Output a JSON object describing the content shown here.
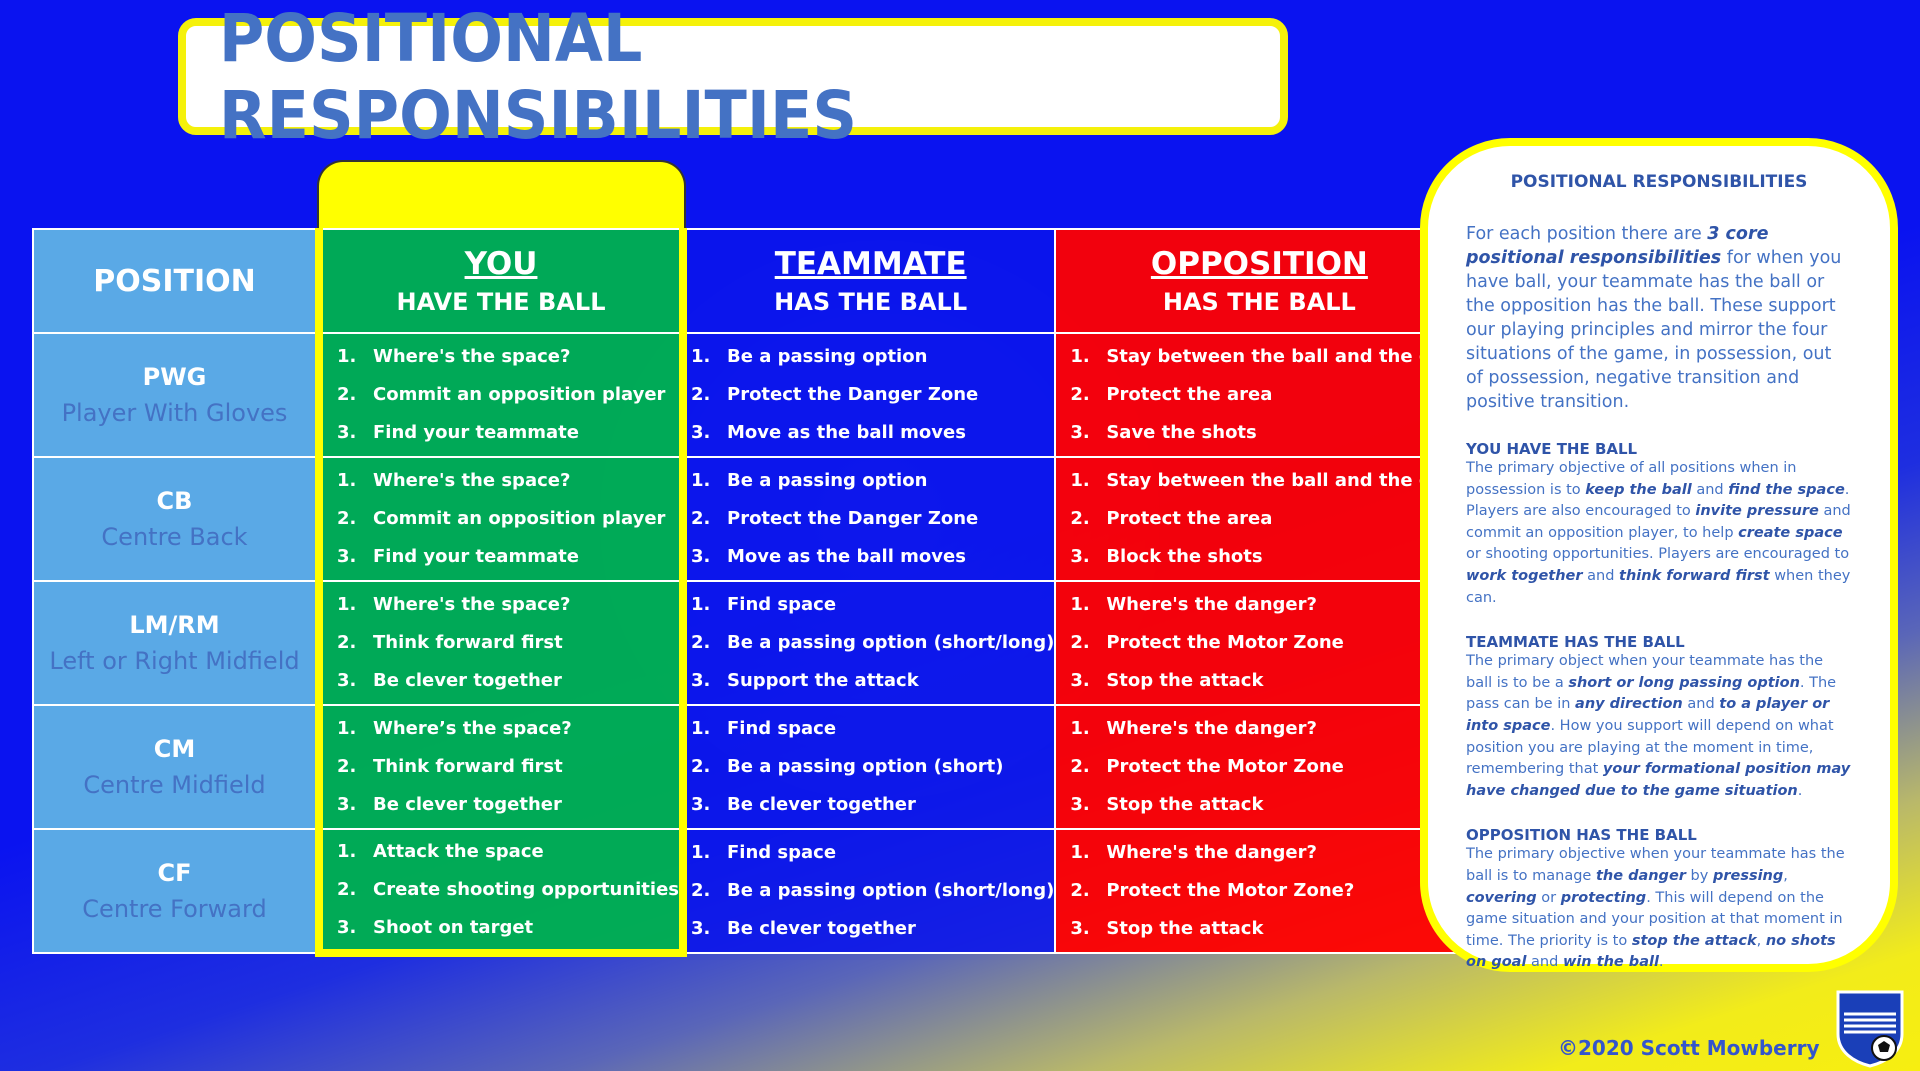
{
  "title": "POSITIONAL RESPONSIBILITIES",
  "table": {
    "position_header": "POSITION",
    "columns": [
      {
        "main": "YOU",
        "sub": "HAVE THE BALL"
      },
      {
        "main": "TEAMMATE",
        "sub": "HAS THE BALL"
      },
      {
        "main": "OPPOSITION",
        "sub": "HAS THE BALL"
      }
    ],
    "rows": [
      {
        "abbr": "PWG",
        "name": "Player With Gloves",
        "you": [
          "Where's the space?",
          "Commit an opposition player",
          "Find your teammate"
        ],
        "team": [
          "Be a passing option",
          "Protect the Danger Zone",
          "Move as the ball moves"
        ],
        "opp": [
          "Stay between the ball and the goal",
          "Protect the area",
          "Save the shots"
        ]
      },
      {
        "abbr": "CB",
        "name": "Centre Back",
        "you": [
          "Where's the space?",
          "Commit an opposition player",
          "Find your teammate"
        ],
        "team": [
          "Be a passing option",
          "Protect the Danger Zone",
          "Move as the ball moves"
        ],
        "opp": [
          "Stay between the ball and the goal",
          "Protect the area",
          "Block the shots"
        ]
      },
      {
        "abbr": "LM/RM",
        "name": "Left or Right Midfield",
        "you": [
          "Where's the space?",
          "Think forward first",
          "Be clever together"
        ],
        "team": [
          "Find space",
          "Be a passing option (short/long)",
          "Support the attack"
        ],
        "opp": [
          "Where's the danger?",
          "Protect the Motor Zone",
          "Stop the attack"
        ]
      },
      {
        "abbr": "CM",
        "name": "Centre Midfield",
        "you": [
          "Where’s the space?",
          "Think forward first",
          "Be clever together"
        ],
        "team": [
          "Find space",
          "Be a passing option (short)",
          "Be clever together"
        ],
        "opp": [
          "Where's the danger?",
          "Protect the Motor Zone",
          "Stop the attack"
        ]
      },
      {
        "abbr": "CF",
        "name": "Centre Forward",
        "you": [
          "Attack the space",
          "Create shooting opportunities",
          "Shoot on target"
        ],
        "team": [
          "Find space",
          "Be a passing option (short/long)",
          "Be clever together"
        ],
        "opp": [
          "Where's the danger?",
          "Protect the Motor Zone?",
          "Stop the attack"
        ]
      }
    ]
  },
  "sidebar": {
    "heading": "POSITIONAL RESPONSIBILITIES",
    "intro": [
      "For each position there are ",
      "3 core positional responsibilities",
      " for when you have ball, your teammate has the ball or the opposition has the ball. These support our playing principles and mirror the four situations of the game, in possession, out of possession, negative transition and positive transition."
    ],
    "sections": [
      {
        "heading": "YOU HAVE THE BALL",
        "parts": [
          "The primary objective of all positions when in possession is to ",
          "keep the ball",
          " and ",
          "find the space",
          ". Players are also encouraged to ",
          "invite pressure",
          " and commit an opposition player, to help ",
          "create space",
          " or shooting opportunities. Players are encouraged to ",
          "work together",
          " and ",
          "think forward first",
          " when they can."
        ]
      },
      {
        "heading": "TEAMMATE HAS THE BALL",
        "parts": [
          "The primary object when your teammate has the ball is to be a ",
          "short or long passing option",
          ". The pass can be in ",
          "any direction",
          " and ",
          "to a player or into space",
          ". How you support will depend on what position you are playing at the moment in time, remembering that ",
          "your formational position may have changed due to the game situation",
          "."
        ]
      },
      {
        "heading": "OPPOSITION HAS THE BALL",
        "parts": [
          "The primary objective when your teammate has the ball is to manage ",
          "the danger",
          " by ",
          "pressing",
          ", ",
          "covering",
          " or ",
          "protecting",
          ". This will depend on the game situation and your position at that moment in time. The priority is to ",
          "stop the attack",
          ", ",
          "no shots on goal",
          " and ",
          "win the ball",
          "."
        ]
      }
    ]
  },
  "credit": "©2020 Scott Mowberry",
  "badge_icon": "club-crest-icon",
  "colors": {
    "you": "#00b050",
    "teammate": "#0a14eb",
    "opposition": "#ff0000",
    "position": "#5aa9e6",
    "accent": "#ffff00"
  }
}
